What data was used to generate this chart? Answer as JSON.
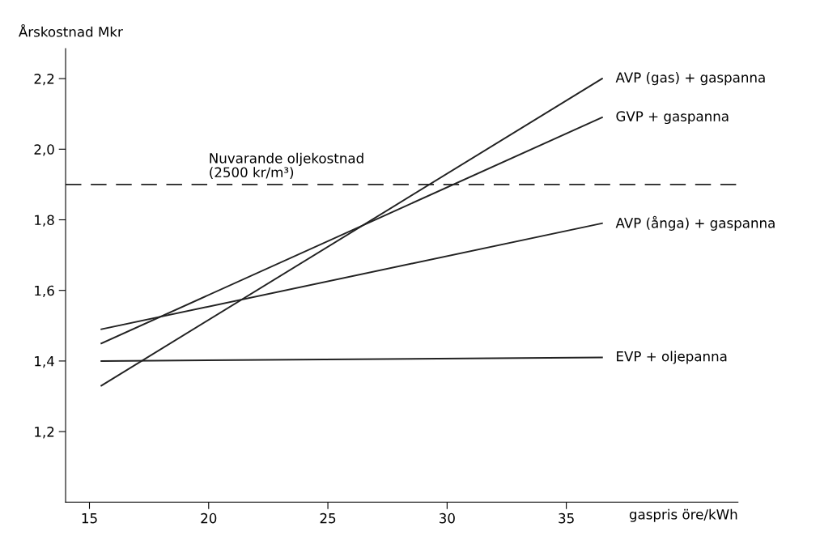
{
  "chart_data": {
    "type": "line",
    "ylabel": "Årskostnad Mkr",
    "xlabel": "gaspris öre/kWh",
    "xlim": [
      14,
      42.2
    ],
    "xticks": [
      15,
      20,
      25,
      30,
      35
    ],
    "ylim": [
      1.0,
      2.285
    ],
    "yticks": [
      {
        "value": 1.2,
        "label": "1,2"
      },
      {
        "value": 1.4,
        "label": "1,4"
      },
      {
        "value": 1.6,
        "label": "1,6"
      },
      {
        "value": 1.8,
        "label": "1,8"
      },
      {
        "value": 2.0,
        "label": "2,0"
      },
      {
        "value": 2.2,
        "label": "2,2"
      }
    ],
    "x": [
      15.5,
      36.5
    ],
    "series": [
      {
        "name": "AVP (gas) + gaspanna",
        "color": "#222222",
        "values": [
          1.33,
          2.2
        ]
      },
      {
        "name": "GVP + gaspanna",
        "color": "#222222",
        "values": [
          1.45,
          2.09
        ]
      },
      {
        "name": "AVP (ånga) + gaspanna",
        "color": "#222222",
        "values": [
          1.49,
          1.79
        ]
      },
      {
        "name": "EVP + oljepanna",
        "color": "#222222",
        "values": [
          1.4,
          1.41
        ]
      }
    ],
    "ref_lines": [
      {
        "axis": "y",
        "value": 1.9,
        "label": "Nuvarande oljekostnad\n(2500 kr/m³)",
        "color": "#222222",
        "line_style": "dashed"
      }
    ],
    "grid": false,
    "legend": false,
    "marker": "none",
    "line_style": "solid"
  }
}
